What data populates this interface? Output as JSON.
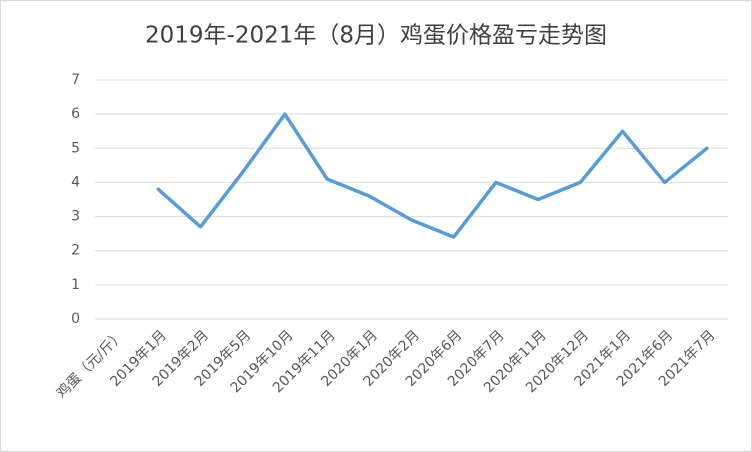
{
  "chart_data": {
    "type": "line",
    "title": "2019年-2021年（8月）鸡蛋价格盈亏走势图",
    "categories": [
      "鸡蛋（元/斤）",
      "2019年1月",
      "2019年2月",
      "2019年5月",
      "2019年10月",
      "2019年11月",
      "2020年1月",
      "2020年2月",
      "2020年6月",
      "2020年7月",
      "2020年11月",
      "2020年12月",
      "2021年1月",
      "2021年6月",
      "2021年7月"
    ],
    "values": [
      null,
      3.8,
      2.7,
      4.3,
      6.0,
      4.1,
      3.6,
      2.9,
      2.4,
      4.0,
      3.5,
      4.0,
      5.5,
      4.0,
      5.0
    ],
    "color": "#5b9bd5",
    "ylim": [
      0,
      7
    ],
    "yticks": [
      0,
      1,
      2,
      3,
      4,
      5,
      6,
      7
    ],
    "grid": true
  }
}
